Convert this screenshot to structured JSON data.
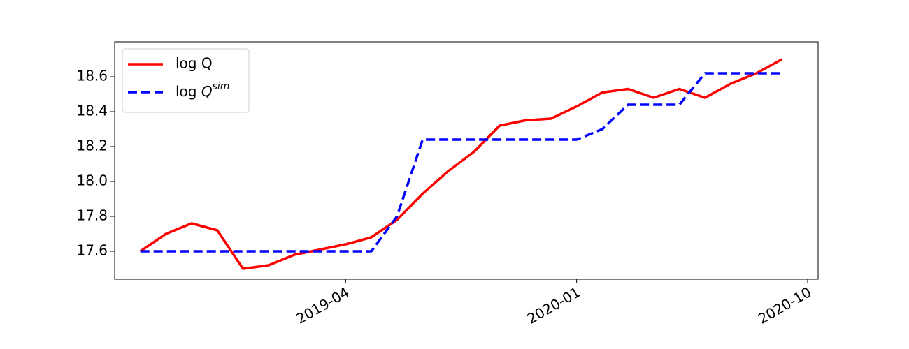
{
  "chart_data": {
    "type": "line",
    "x": [
      "2018-08",
      "2018-09",
      "2018-10",
      "2018-11",
      "2018-12",
      "2019-01",
      "2019-02",
      "2019-03",
      "2019-04",
      "2019-05",
      "2019-06",
      "2019-07",
      "2019-08",
      "2019-09",
      "2019-10",
      "2019-11",
      "2019-12",
      "2020-01",
      "2020-02",
      "2020-03",
      "2020-04",
      "2020-05",
      "2020-06",
      "2020-07",
      "2020-08",
      "2020-09"
    ],
    "series": [
      {
        "name": "log Q",
        "color": "#ff0000",
        "dash": false,
        "values": [
          17.6,
          17.7,
          17.76,
          17.72,
          17.5,
          17.52,
          17.58,
          17.61,
          17.64,
          17.68,
          17.78,
          17.93,
          18.06,
          18.17,
          18.32,
          18.35,
          18.36,
          18.43,
          18.51,
          18.53,
          18.48,
          18.53,
          18.48,
          18.56,
          18.62,
          18.7
        ]
      },
      {
        "name": "log Q^{sim}",
        "color": "#0000ff",
        "dash": true,
        "values": [
          17.6,
          17.6,
          17.6,
          17.6,
          17.6,
          17.6,
          17.6,
          17.6,
          17.6,
          17.6,
          17.8,
          18.24,
          18.24,
          18.24,
          18.24,
          18.24,
          18.24,
          18.24,
          18.3,
          18.44,
          18.44,
          18.44,
          18.62,
          18.62,
          18.62,
          18.62
        ]
      }
    ],
    "xlim": [
      "2018-07",
      "2020-10"
    ],
    "xticks": [
      "2019-04",
      "2020-01",
      "2020-10"
    ],
    "ylim": [
      17.44,
      18.8
    ],
    "yticks": [
      17.6,
      17.8,
      {
        "value": 18.0,
        "label": "18.0"
      },
      18.2,
      18.4,
      18.6
    ],
    "legend": "upper left",
    "grid": false
  }
}
